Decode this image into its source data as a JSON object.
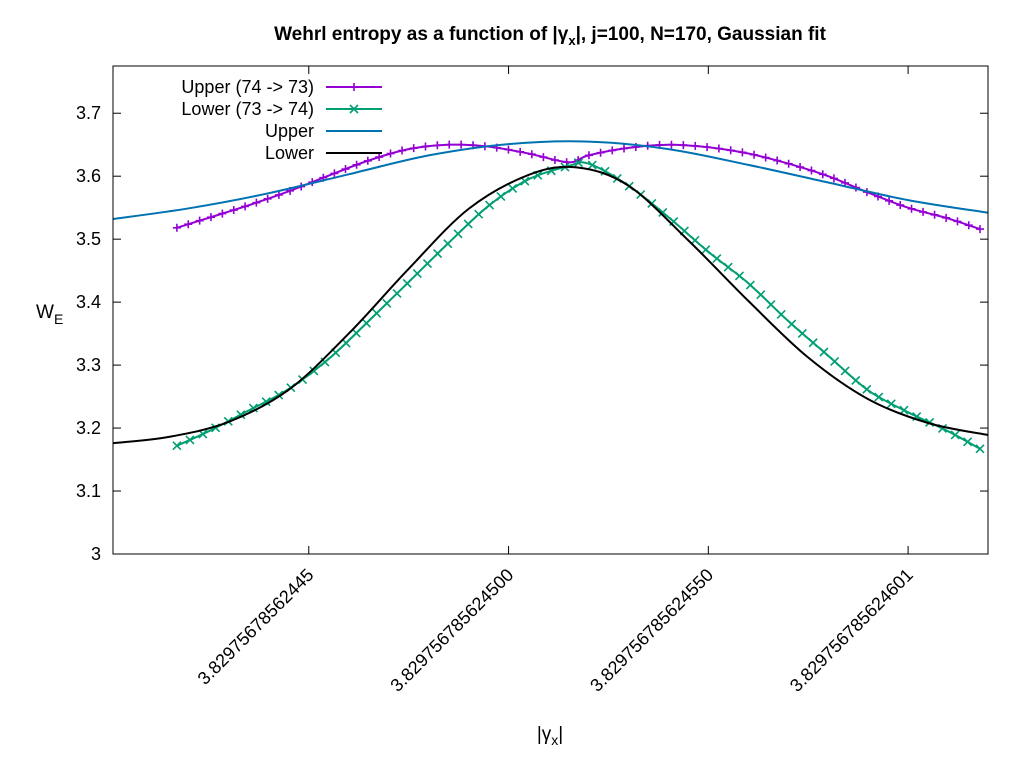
{
  "chart_data": {
    "type": "line",
    "title": {
      "pre": "Wehrl entropy as a function of |",
      "symbol": "γ",
      "sub": "x",
      "post": "|,  j=100, N=170, Gaussian fit"
    },
    "xlabel": {
      "pre": "|",
      "symbol": "γ",
      "sub": "x",
      "post": "|"
    },
    "ylabel": {
      "main": "W",
      "sub": "E"
    },
    "xlim": [
      -49,
      170
    ],
    "ylim": [
      3.0,
      3.775
    ],
    "x_ticks": [
      {
        "value": 0,
        "label": "3.82975678562445"
      },
      {
        "value": 50,
        "label": "3.829756785624500"
      },
      {
        "value": 100,
        "label": "3.829756785624550"
      },
      {
        "value": 150,
        "label": "3.829756785624601"
      }
    ],
    "y_ticks": [
      {
        "value": 3.0,
        "label": "3"
      },
      {
        "value": 3.1,
        "label": "3.1"
      },
      {
        "value": 3.2,
        "label": "3.2"
      },
      {
        "value": 3.3,
        "label": "3.3"
      },
      {
        "value": 3.4,
        "label": "3.4"
      },
      {
        "value": 3.5,
        "label": "3.5"
      },
      {
        "value": 3.6,
        "label": "3.6"
      },
      {
        "value": 3.7,
        "label": "3.7"
      }
    ],
    "legend_position": "top-left",
    "series": [
      {
        "name": "Upper (74 -> 73)",
        "color": "#9400d3",
        "marker": "plus",
        "x": [
          -33,
          -25,
          -15,
          -5,
          5,
          15,
          25,
          35,
          45,
          55,
          65,
          70,
          80,
          90,
          100,
          110,
          120,
          130,
          140,
          150,
          160,
          168
        ],
        "y": [
          3.518,
          3.534,
          3.554,
          3.576,
          3.601,
          3.625,
          3.643,
          3.65,
          3.647,
          3.636,
          3.622,
          3.633,
          3.645,
          3.65,
          3.646,
          3.636,
          3.62,
          3.6,
          3.574,
          3.55,
          3.533,
          3.516
        ]
      },
      {
        "name": "Lower (73 -> 74)",
        "color": "#009e73",
        "marker": "cross",
        "x": [
          -33,
          -25,
          -15,
          -5,
          5,
          15,
          25,
          35,
          45,
          55,
          65,
          70,
          80,
          90,
          100,
          110,
          120,
          130,
          140,
          150,
          160,
          168
        ],
        "y": [
          3.172,
          3.195,
          3.228,
          3.262,
          3.31,
          3.37,
          3.432,
          3.494,
          3.553,
          3.595,
          3.616,
          3.62,
          3.585,
          3.535,
          3.48,
          3.43,
          3.37,
          3.315,
          3.26,
          3.225,
          3.195,
          3.167
        ]
      },
      {
        "name": "Upper",
        "color": "#0072b2",
        "marker": "none",
        "x": [
          -49,
          -30,
          -10,
          10,
          30,
          50,
          70,
          90,
          110,
          130,
          150,
          170
        ],
        "y": [
          3.532,
          3.549,
          3.573,
          3.603,
          3.633,
          3.651,
          3.655,
          3.643,
          3.618,
          3.59,
          3.562,
          3.542
        ]
      },
      {
        "name": "Lower",
        "color": "#000000",
        "marker": "none",
        "x": [
          -49,
          -35,
          -20,
          -5,
          10,
          25,
          40,
          55,
          67,
          80,
          95,
          110,
          125,
          140,
          155,
          170
        ],
        "y": [
          3.176,
          3.186,
          3.21,
          3.261,
          3.35,
          3.453,
          3.548,
          3.602,
          3.614,
          3.585,
          3.498,
          3.402,
          3.312,
          3.246,
          3.208,
          3.189
        ]
      }
    ]
  }
}
